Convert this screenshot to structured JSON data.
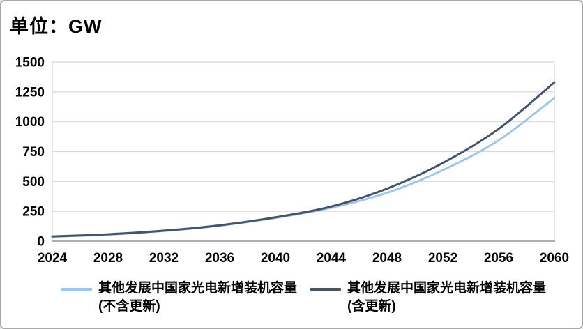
{
  "title": "单位：GW",
  "chart_data": {
    "type": "line",
    "title": "单位：GW",
    "unit": "GW",
    "x": [
      2024,
      2028,
      2032,
      2036,
      2040,
      2044,
      2048,
      2052,
      2056,
      2060
    ],
    "xlim": [
      2024,
      2060
    ],
    "ylim": [
      0,
      1500
    ],
    "ytick_step": 250,
    "yticks": [
      0,
      250,
      500,
      750,
      1000,
      1250,
      1500
    ],
    "grid": "horizontal",
    "legend_position": "bottom",
    "series": [
      {
        "name": "其他发展中国家光电新增装机容量(不含更新)",
        "label_line1": "其他发展中国家光电新增装机容量",
        "label_line2": "(不含更新)",
        "color": "#A1C5E8",
        "values": [
          38,
          55,
          85,
          130,
          195,
          280,
          405,
          595,
          845,
          1200
        ]
      },
      {
        "name": "其他发展中国家光电新增装机容量(含更新)",
        "label_line1": "其他发展中国家光电新增装机容量",
        "label_line2": "(含更新)",
        "color": "#44546A",
        "values": [
          40,
          58,
          88,
          133,
          200,
          290,
          440,
          655,
          940,
          1330
        ]
      }
    ],
    "colors": {
      "gridline": "#D9D9D9",
      "plot_border": "#D9D9D9",
      "axis_line": "#A6A6A6",
      "tick_text": "#000000"
    }
  }
}
